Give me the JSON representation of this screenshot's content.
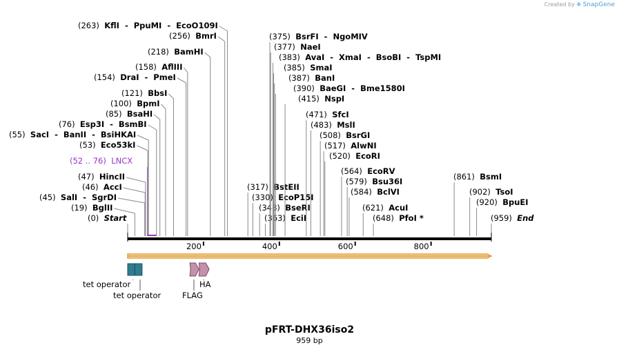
{
  "header": {
    "credit_prefix": "Created by",
    "credit_brand": "SnapGene"
  },
  "plasmid": {
    "name": "pFRT-DHX36iso2",
    "length_label": "959 bp",
    "length": 959
  },
  "axis": {
    "ticks": [
      200,
      400,
      600,
      800
    ]
  },
  "sites": [
    {
      "pos": 0,
      "paren": "(0)",
      "text": "Start",
      "style": "it"
    },
    {
      "pos": 19,
      "paren": "(19)",
      "text": "BglII"
    },
    {
      "pos": 45,
      "paren": "(45)",
      "text": "SalI  -  SgrDI"
    },
    {
      "pos": 46,
      "paren": "(46)",
      "text": "AccI"
    },
    {
      "pos": 47,
      "paren": "(47)",
      "text": "HincII"
    },
    {
      "pos": 52,
      "paren": "(52 .. 76)",
      "text": "LNCX",
      "style": "purple"
    },
    {
      "pos": 53,
      "paren": "(53)",
      "text": "Eco53kI"
    },
    {
      "pos": 55,
      "paren": "(55)",
      "text": "SacI  -  BanII  -  BsiHKAI"
    },
    {
      "pos": 76,
      "paren": "(76)",
      "text": "Esp3I  -  BsmBI"
    },
    {
      "pos": 85,
      "paren": "(85)",
      "text": "BsaHI"
    },
    {
      "pos": 100,
      "paren": "(100)",
      "text": "BpmI"
    },
    {
      "pos": 121,
      "paren": "(121)",
      "text": "BbsI"
    },
    {
      "pos": 154,
      "paren": "(154)",
      "text": "DraI  -  PmeI"
    },
    {
      "pos": 158,
      "paren": "(158)",
      "text": "AflIII"
    },
    {
      "pos": 218,
      "paren": "(218)",
      "text": "BamHI"
    },
    {
      "pos": 256,
      "paren": "(256)",
      "text": "BmrI"
    },
    {
      "pos": 263,
      "paren": "(263)",
      "text": "KflI  -  PpuMI  -  EcoO109I"
    },
    {
      "pos": 317,
      "paren": "(317)",
      "text": "BstEII"
    },
    {
      "pos": 330,
      "paren": "(330)",
      "text": "EcoP15I"
    },
    {
      "pos": 348,
      "paren": "(348)",
      "text": "BseRI"
    },
    {
      "pos": 363,
      "paren": "(363)",
      "text": "EciI"
    },
    {
      "pos": 375,
      "paren": "(375)",
      "text": "BsrFI  -  NgoMIV"
    },
    {
      "pos": 377,
      "paren": "(377)",
      "text": "NaeI"
    },
    {
      "pos": 383,
      "paren": "(383)",
      "text": "AvaI  -  XmaI  -  BsoBI  -  TspMI"
    },
    {
      "pos": 385,
      "paren": "(385)",
      "text": "SmaI"
    },
    {
      "pos": 387,
      "paren": "(387)",
      "text": "BanI"
    },
    {
      "pos": 390,
      "paren": "(390)",
      "text": "BaeGI  -  Bme1580I"
    },
    {
      "pos": 415,
      "paren": "(415)",
      "text": "NspI"
    },
    {
      "pos": 471,
      "paren": "(471)",
      "text": "SfcI"
    },
    {
      "pos": 483,
      "paren": "(483)",
      "text": "MslI"
    },
    {
      "pos": 508,
      "paren": "(508)",
      "text": "BsrGI"
    },
    {
      "pos": 517,
      "paren": "(517)",
      "text": "AlwNI"
    },
    {
      "pos": 520,
      "paren": "(520)",
      "text": "EcoRI"
    },
    {
      "pos": 564,
      "paren": "(564)",
      "text": "EcoRV"
    },
    {
      "pos": 579,
      "paren": "(579)",
      "text": "Bsu36I"
    },
    {
      "pos": 584,
      "paren": "(584)",
      "text": "BclVI"
    },
    {
      "pos": 621,
      "paren": "(621)",
      "text": "AcuI"
    },
    {
      "pos": 648,
      "paren": "(648)",
      "text": "PfoI *"
    },
    {
      "pos": 861,
      "paren": "(861)",
      "text": "BsmI"
    },
    {
      "pos": 902,
      "paren": "(902)",
      "text": "TsoI"
    },
    {
      "pos": 920,
      "paren": "(920)",
      "text": "BpuEI"
    },
    {
      "pos": 959,
      "paren": "(959)",
      "text": "End",
      "style": "it"
    }
  ],
  "features": [
    {
      "name": "tet operator",
      "start": 1,
      "end": 19,
      "color": "#2e7d8f"
    },
    {
      "name": "tet operator",
      "start": 20,
      "end": 38,
      "color": "#2e7d8f"
    },
    {
      "name": "FLAG",
      "start": 165,
      "end": 188,
      "color": "#c490aa"
    },
    {
      "name": "HA",
      "start": 189,
      "end": 215,
      "color": "#c490aa"
    }
  ],
  "orf": {
    "start": 1,
    "end": 959,
    "fill": "#f5d9a0",
    "stroke": "#e5a03a"
  },
  "colors": {
    "backbone": "#000000",
    "lnc": "#9933cc"
  }
}
